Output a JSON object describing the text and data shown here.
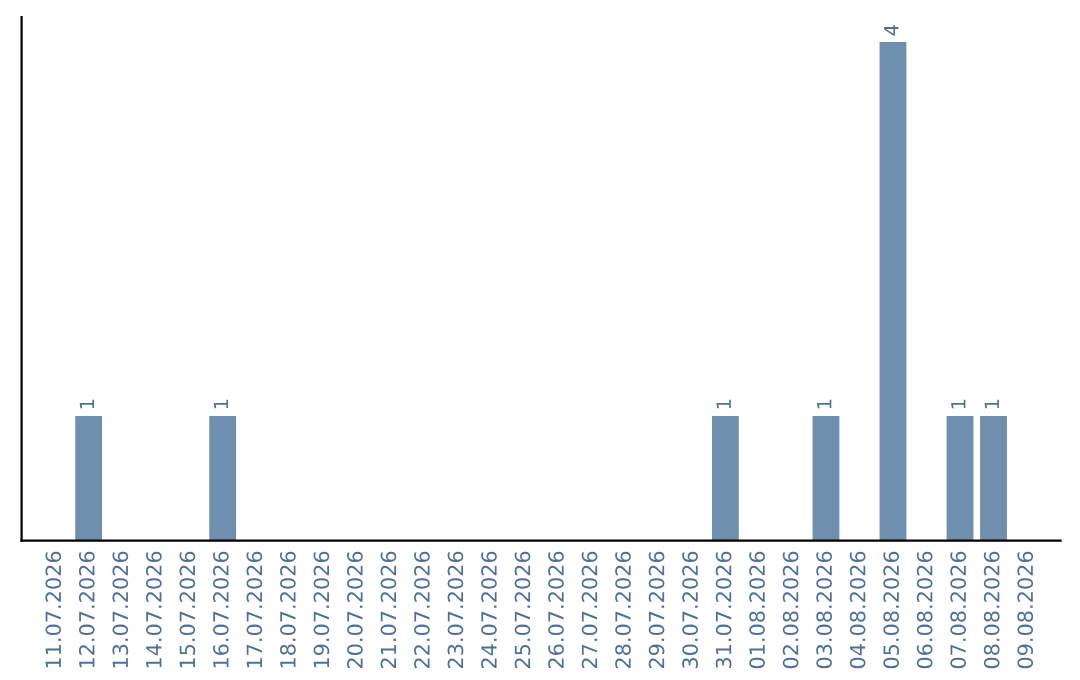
{
  "chart_data": {
    "type": "bar",
    "categories": [
      "11.07.2026",
      "12.07.2026",
      "13.07.2026",
      "14.07.2026",
      "15.07.2026",
      "16.07.2026",
      "17.07.2026",
      "18.07.2026",
      "19.07.2026",
      "20.07.2026",
      "21.07.2026",
      "22.07.2026",
      "23.07.2026",
      "24.07.2026",
      "25.07.2026",
      "26.07.2026",
      "27.07.2026",
      "28.07.2026",
      "29.07.2026",
      "30.07.2026",
      "31.07.2026",
      "01.08.2026",
      "02.08.2026",
      "03.08.2026",
      "04.08.2026",
      "05.08.2026",
      "06.08.2026",
      "07.08.2026",
      "08.08.2026",
      "09.08.2026"
    ],
    "values": [
      0,
      1,
      0,
      0,
      0,
      1,
      0,
      0,
      0,
      0,
      0,
      0,
      0,
      0,
      0,
      0,
      0,
      0,
      0,
      0,
      1,
      0,
      0,
      1,
      0,
      4,
      0,
      1,
      1,
      0
    ],
    "value_labels": [
      null,
      "1",
      null,
      null,
      null,
      "1",
      null,
      null,
      null,
      null,
      null,
      null,
      null,
      null,
      null,
      null,
      null,
      null,
      null,
      null,
      "1",
      null,
      null,
      "1",
      null,
      "4",
      null,
      "1",
      "1",
      null
    ],
    "color": "#6e8fae",
    "tick_labels": "x",
    "grid": false,
    "legend": false
  }
}
